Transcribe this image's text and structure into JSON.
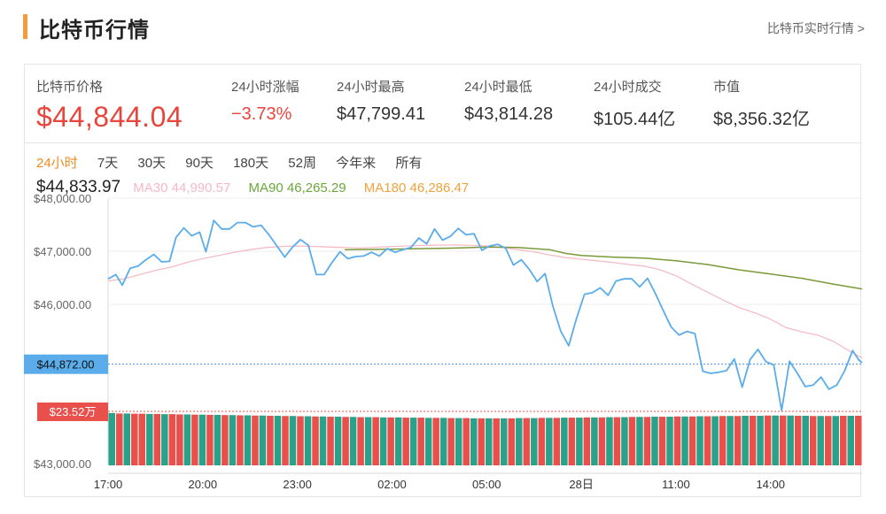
{
  "header": {
    "title": "比特币行情",
    "more_link": "比特币实时行情 >"
  },
  "stats": [
    {
      "label": "比特币价格",
      "value": "$44,844.04"
    },
    {
      "label": "24小时涨幅",
      "value": "−3.73%"
    },
    {
      "label": "24小时最高",
      "value": "$47,799.41"
    },
    {
      "label": "24小时最低",
      "value": "$43,814.28"
    },
    {
      "label": "24小时成交",
      "value": "$105.44亿"
    },
    {
      "label": "市值",
      "value": "$8,356.32亿"
    }
  ],
  "tabs": [
    "24小时",
    "7天",
    "30天",
    "90天",
    "180天",
    "52周",
    "今年来",
    "所有"
  ],
  "active_tab": "24小时",
  "legend": {
    "price": "$44,833.97",
    "ma30": "MA30 44,990.57",
    "ma90": "MA90 46,265.29",
    "ma180": "MA180 46,286.47"
  },
  "colors": {
    "price": "#5aacea",
    "ma30": "#f5bcc6",
    "ma90": "#7a9a3a",
    "ma180": "#f0a23b",
    "up": "#2aa189",
    "down": "#e9504c",
    "accent": "#f08b23"
  },
  "chart_data": {
    "type": "line",
    "y_ticks": [
      "$48,000.00",
      "$47,000.00",
      "$46,000.00",
      "$43,000.00"
    ],
    "y_tick_values": [
      48000,
      47000,
      46000,
      43000
    ],
    "x_ticks": [
      "17:00",
      "20:00",
      "23:00",
      "02:00",
      "05:00",
      "28日",
      "11:00",
      "14:00"
    ],
    "x_tick_positions": [
      0,
      3,
      6,
      9,
      12,
      15,
      18,
      21
    ],
    "x_range": [
      0,
      23.9
    ],
    "ylim": [
      43000,
      48000
    ],
    "price_marker": {
      "label": "$44,872.00",
      "value": 44872
    },
    "volume_marker": {
      "label": "$23.52万"
    },
    "series": [
      {
        "key": "price",
        "points": [
          [
            0,
            46480
          ],
          [
            0.25,
            46560
          ],
          [
            0.45,
            46360
          ],
          [
            0.7,
            46680
          ],
          [
            0.95,
            46720
          ],
          [
            1.2,
            46840
          ],
          [
            1.45,
            46940
          ],
          [
            1.7,
            46800
          ],
          [
            1.95,
            46810
          ],
          [
            2.15,
            47260
          ],
          [
            2.4,
            47440
          ],
          [
            2.65,
            47290
          ],
          [
            2.9,
            47360
          ],
          [
            3.1,
            46990
          ],
          [
            3.35,
            47580
          ],
          [
            3.6,
            47420
          ],
          [
            3.85,
            47420
          ],
          [
            4.1,
            47540
          ],
          [
            4.35,
            47540
          ],
          [
            4.6,
            47460
          ],
          [
            4.85,
            47490
          ],
          [
            5.1,
            47310
          ],
          [
            5.35,
            47100
          ],
          [
            5.6,
            46890
          ],
          [
            5.85,
            47080
          ],
          [
            6.1,
            47220
          ],
          [
            6.35,
            47110
          ],
          [
            6.6,
            46560
          ],
          [
            6.85,
            46560
          ],
          [
            7.1,
            46790
          ],
          [
            7.35,
            46990
          ],
          [
            7.6,
            46860
          ],
          [
            7.85,
            46900
          ],
          [
            8.1,
            46910
          ],
          [
            8.35,
            46980
          ],
          [
            8.6,
            46910
          ],
          [
            8.85,
            47050
          ],
          [
            9.1,
            46980
          ],
          [
            9.35,
            47030
          ],
          [
            9.6,
            47070
          ],
          [
            9.85,
            47250
          ],
          [
            10.1,
            47140
          ],
          [
            10.35,
            47420
          ],
          [
            10.6,
            47210
          ],
          [
            10.85,
            47280
          ],
          [
            11.1,
            47430
          ],
          [
            11.35,
            47310
          ],
          [
            11.6,
            47330
          ],
          [
            11.85,
            47020
          ],
          [
            12.1,
            47100
          ],
          [
            12.35,
            47130
          ],
          [
            12.6,
            47060
          ],
          [
            12.85,
            46740
          ],
          [
            13.1,
            46840
          ],
          [
            13.35,
            46660
          ],
          [
            13.6,
            46430
          ],
          [
            13.85,
            46580
          ],
          [
            14.1,
            45960
          ],
          [
            14.35,
            45490
          ],
          [
            14.6,
            45220
          ],
          [
            14.85,
            45740
          ],
          [
            15.1,
            46190
          ],
          [
            15.35,
            46220
          ],
          [
            15.6,
            46310
          ],
          [
            15.85,
            46170
          ],
          [
            16.1,
            46440
          ],
          [
            16.35,
            46480
          ],
          [
            16.6,
            46480
          ],
          [
            16.85,
            46330
          ],
          [
            17.1,
            46490
          ],
          [
            17.35,
            46200
          ],
          [
            17.6,
            45880
          ],
          [
            17.85,
            45570
          ],
          [
            18.1,
            45420
          ],
          [
            18.35,
            45490
          ],
          [
            18.6,
            45450
          ],
          [
            18.85,
            44740
          ],
          [
            19.1,
            44700
          ],
          [
            19.35,
            44720
          ],
          [
            19.6,
            44750
          ],
          [
            19.85,
            44970
          ],
          [
            20.1,
            44440
          ],
          [
            20.35,
            44960
          ],
          [
            20.6,
            45150
          ],
          [
            20.85,
            44920
          ],
          [
            21.1,
            44860
          ],
          [
            21.35,
            44000
          ],
          [
            21.6,
            44930
          ],
          [
            21.85,
            44700
          ],
          [
            22.1,
            44450
          ],
          [
            22.35,
            44480
          ],
          [
            22.6,
            44630
          ],
          [
            22.85,
            44400
          ],
          [
            23.1,
            44480
          ],
          [
            23.35,
            44750
          ],
          [
            23.6,
            45130
          ],
          [
            23.8,
            44950
          ],
          [
            23.9,
            44900
          ]
        ]
      },
      {
        "key": "ma30",
        "points": [
          [
            0,
            46440
          ],
          [
            0.5,
            46480
          ],
          [
            1,
            46560
          ],
          [
            1.5,
            46640
          ],
          [
            2,
            46700
          ],
          [
            2.5,
            46790
          ],
          [
            3,
            46860
          ],
          [
            3.5,
            46920
          ],
          [
            4,
            46980
          ],
          [
            4.5,
            47030
          ],
          [
            5,
            47070
          ],
          [
            5.5,
            47090
          ],
          [
            6,
            47100
          ],
          [
            7,
            47080
          ],
          [
            8,
            47060
          ],
          [
            9,
            47090
          ],
          [
            10,
            47110
          ],
          [
            11,
            47120
          ],
          [
            11.5,
            47110
          ],
          [
            12,
            47100
          ],
          [
            12.5,
            47070
          ],
          [
            13,
            47030
          ],
          [
            13.5,
            46990
          ],
          [
            14,
            46930
          ],
          [
            14.5,
            46880
          ],
          [
            15,
            46850
          ],
          [
            15.5,
            46820
          ],
          [
            16,
            46790
          ],
          [
            16.5,
            46750
          ],
          [
            17,
            46720
          ],
          [
            17.5,
            46650
          ],
          [
            18,
            46540
          ],
          [
            18.5,
            46380
          ],
          [
            19,
            46230
          ],
          [
            19.5,
            46080
          ],
          [
            20,
            45940
          ],
          [
            20.5,
            45840
          ],
          [
            21,
            45720
          ],
          [
            21.5,
            45560
          ],
          [
            22,
            45480
          ],
          [
            22.5,
            45420
          ],
          [
            23,
            45300
          ],
          [
            23.5,
            45120
          ],
          [
            23.9,
            44990
          ]
        ]
      },
      {
        "key": "ma90",
        "points": [
          [
            7.5,
            47030
          ],
          [
            9,
            47040
          ],
          [
            10,
            47050
          ],
          [
            11,
            47060
          ],
          [
            12,
            47080
          ],
          [
            13,
            47070
          ],
          [
            14,
            47030
          ],
          [
            14.5,
            46960
          ],
          [
            15,
            46920
          ],
          [
            16,
            46890
          ],
          [
            17,
            46870
          ],
          [
            18,
            46820
          ],
          [
            19,
            46750
          ],
          [
            20,
            46650
          ],
          [
            21,
            46570
          ],
          [
            22,
            46490
          ],
          [
            23,
            46380
          ],
          [
            23.9,
            46290
          ]
        ]
      }
    ],
    "volume": {
      "ylim": [
        0,
        23.52
      ],
      "bars": [
        {
          "v": 22.8,
          "d": "up"
        },
        {
          "v": 22.6,
          "d": "down"
        },
        {
          "v": 22.6,
          "d": "up"
        },
        {
          "v": 22.5,
          "d": "down"
        },
        {
          "v": 22.5,
          "d": "down"
        },
        {
          "v": 22.4,
          "d": "up"
        },
        {
          "v": 22.4,
          "d": "down"
        },
        {
          "v": 22.3,
          "d": "up"
        },
        {
          "v": 22.3,
          "d": "down"
        },
        {
          "v": 22.2,
          "d": "down"
        },
        {
          "v": 22.2,
          "d": "up"
        },
        {
          "v": 22.1,
          "d": "down"
        },
        {
          "v": 22.1,
          "d": "up"
        },
        {
          "v": 22.0,
          "d": "down"
        },
        {
          "v": 22.0,
          "d": "up"
        },
        {
          "v": 21.9,
          "d": "down"
        },
        {
          "v": 21.9,
          "d": "up"
        },
        {
          "v": 21.8,
          "d": "down"
        },
        {
          "v": 21.8,
          "d": "up"
        },
        {
          "v": 21.7,
          "d": "down"
        },
        {
          "v": 21.7,
          "d": "up"
        },
        {
          "v": 21.6,
          "d": "down"
        },
        {
          "v": 21.6,
          "d": "up"
        },
        {
          "v": 21.5,
          "d": "down"
        },
        {
          "v": 21.5,
          "d": "up"
        },
        {
          "v": 21.4,
          "d": "down"
        },
        {
          "v": 21.4,
          "d": "up"
        },
        {
          "v": 21.3,
          "d": "down"
        },
        {
          "v": 21.3,
          "d": "up"
        },
        {
          "v": 21.2,
          "d": "down"
        },
        {
          "v": 21.2,
          "d": "up"
        },
        {
          "v": 21.1,
          "d": "down"
        },
        {
          "v": 21.1,
          "d": "up"
        },
        {
          "v": 21.0,
          "d": "down"
        },
        {
          "v": 21.0,
          "d": "up"
        },
        {
          "v": 21.0,
          "d": "down"
        },
        {
          "v": 20.9,
          "d": "up"
        },
        {
          "v": 20.9,
          "d": "down"
        },
        {
          "v": 20.9,
          "d": "up"
        },
        {
          "v": 20.8,
          "d": "down"
        },
        {
          "v": 20.8,
          "d": "up"
        },
        {
          "v": 20.8,
          "d": "down"
        },
        {
          "v": 20.7,
          "d": "up"
        },
        {
          "v": 20.7,
          "d": "down"
        },
        {
          "v": 20.7,
          "d": "up"
        },
        {
          "v": 20.6,
          "d": "down"
        },
        {
          "v": 20.6,
          "d": "up"
        },
        {
          "v": 20.6,
          "d": "down"
        },
        {
          "v": 20.5,
          "d": "up"
        },
        {
          "v": 20.5,
          "d": "down"
        },
        {
          "v": 20.5,
          "d": "up"
        },
        {
          "v": 20.5,
          "d": "down"
        },
        {
          "v": 20.5,
          "d": "up"
        },
        {
          "v": 20.5,
          "d": "down"
        },
        {
          "v": 20.6,
          "d": "up"
        },
        {
          "v": 20.6,
          "d": "down"
        },
        {
          "v": 20.6,
          "d": "up"
        },
        {
          "v": 20.7,
          "d": "down"
        },
        {
          "v": 20.7,
          "d": "up"
        },
        {
          "v": 20.7,
          "d": "down"
        },
        {
          "v": 20.8,
          "d": "up"
        },
        {
          "v": 20.8,
          "d": "down"
        },
        {
          "v": 20.8,
          "d": "up"
        },
        {
          "v": 20.9,
          "d": "down"
        },
        {
          "v": 20.9,
          "d": "up"
        },
        {
          "v": 20.9,
          "d": "down"
        },
        {
          "v": 21.0,
          "d": "up"
        },
        {
          "v": 21.0,
          "d": "down"
        },
        {
          "v": 21.0,
          "d": "up"
        },
        {
          "v": 21.1,
          "d": "down"
        },
        {
          "v": 21.1,
          "d": "up"
        },
        {
          "v": 21.1,
          "d": "down"
        },
        {
          "v": 21.2,
          "d": "up"
        },
        {
          "v": 21.2,
          "d": "down"
        },
        {
          "v": 21.2,
          "d": "up"
        },
        {
          "v": 21.3,
          "d": "down"
        },
        {
          "v": 21.3,
          "d": "up"
        },
        {
          "v": 21.3,
          "d": "down"
        },
        {
          "v": 21.4,
          "d": "up"
        },
        {
          "v": 21.4,
          "d": "down"
        },
        {
          "v": 21.4,
          "d": "up"
        },
        {
          "v": 21.5,
          "d": "down"
        },
        {
          "v": 21.5,
          "d": "up"
        },
        {
          "v": 21.5,
          "d": "down"
        },
        {
          "v": 21.6,
          "d": "up"
        },
        {
          "v": 21.6,
          "d": "down"
        },
        {
          "v": 21.6,
          "d": "up"
        },
        {
          "v": 21.7,
          "d": "down"
        },
        {
          "v": 21.7,
          "d": "up"
        },
        {
          "v": 21.7,
          "d": "down"
        },
        {
          "v": 21.7,
          "d": "up"
        },
        {
          "v": 21.6,
          "d": "down"
        },
        {
          "v": 21.6,
          "d": "up"
        },
        {
          "v": 21.5,
          "d": "down"
        },
        {
          "v": 21.5,
          "d": "up"
        },
        {
          "v": 21.5,
          "d": "down"
        },
        {
          "v": 21.5,
          "d": "up"
        },
        {
          "v": 21.6,
          "d": "down"
        },
        {
          "v": 21.6,
          "d": "up"
        },
        {
          "v": 21.6,
          "d": "down"
        }
      ]
    }
  }
}
